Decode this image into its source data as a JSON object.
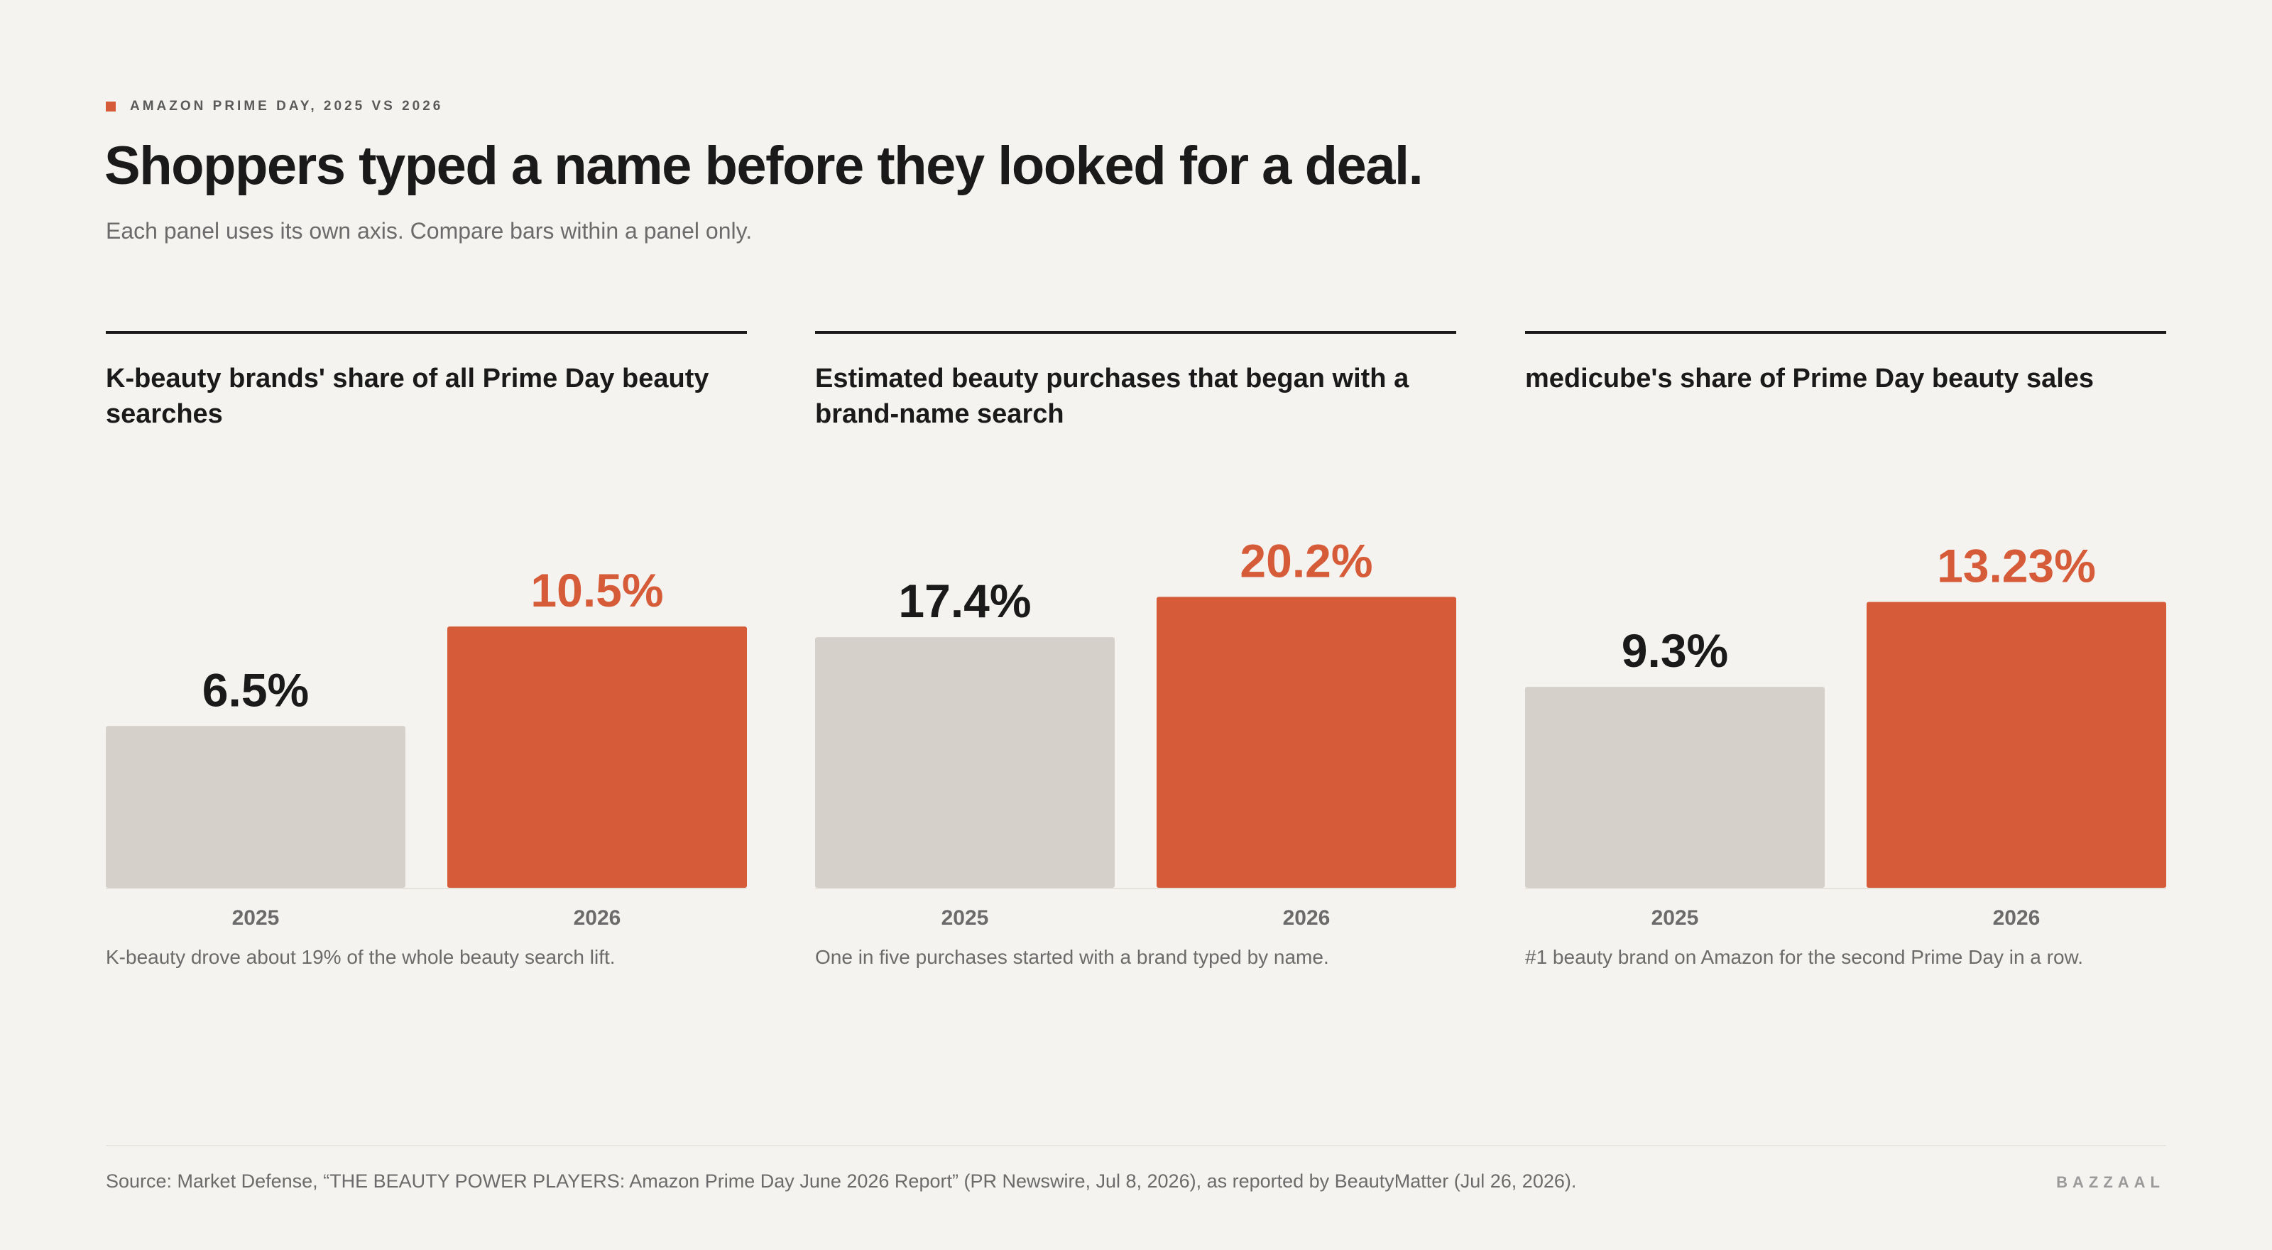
{
  "kicker": "AMAZON PRIME DAY, 2025 VS 2026",
  "title": "Shoppers typed a name before they looked for a deal.",
  "subtitle": "Each panel uses its own axis. Compare bars within a panel only.",
  "colors": {
    "accent": "#d65b38",
    "muted_bar": "#d6d0ca",
    "text_dark": "#1a1a1a",
    "text_muted": "#6b6b6b",
    "background": "#f5f3ef"
  },
  "chart_data": [
    {
      "type": "bar",
      "title": "K-beauty brands' share of all Prime Day beauty searches",
      "categories": [
        "2025",
        "2026"
      ],
      "values": [
        6.5,
        10.5
      ],
      "value_labels": [
        "6.5%",
        "10.5%"
      ],
      "ylim": [
        0,
        16.5
      ],
      "note": "K-beauty drove about 19% of the whole beauty search lift."
    },
    {
      "type": "bar",
      "title": "Estimated beauty purchases that began with a brand-name search",
      "categories": [
        "2025",
        "2026"
      ],
      "values": [
        17.4,
        20.2
      ],
      "value_labels": [
        "17.4%",
        "20.2%"
      ],
      "ylim": [
        0,
        28.5
      ],
      "note": "One in five purchases started with a brand typed by name."
    },
    {
      "type": "bar",
      "title": "medicube's share of Prime Day beauty sales",
      "categories": [
        "2025",
        "2026"
      ],
      "values": [
        9.3,
        13.23
      ],
      "value_labels": [
        "9.3%",
        "13.23%"
      ],
      "ylim": [
        0,
        19
      ],
      "note": "#1 beauty brand on Amazon for the second Prime Day in a row."
    }
  ],
  "source": "Source: Market Defense, “THE BEAUTY POWER PLAYERS: Amazon Prime Day June 2026 Report” (PR Newswire, Jul 8, 2026), as reported by BeautyMatter (Jul 26, 2026).",
  "brand": "BAZZAAL"
}
